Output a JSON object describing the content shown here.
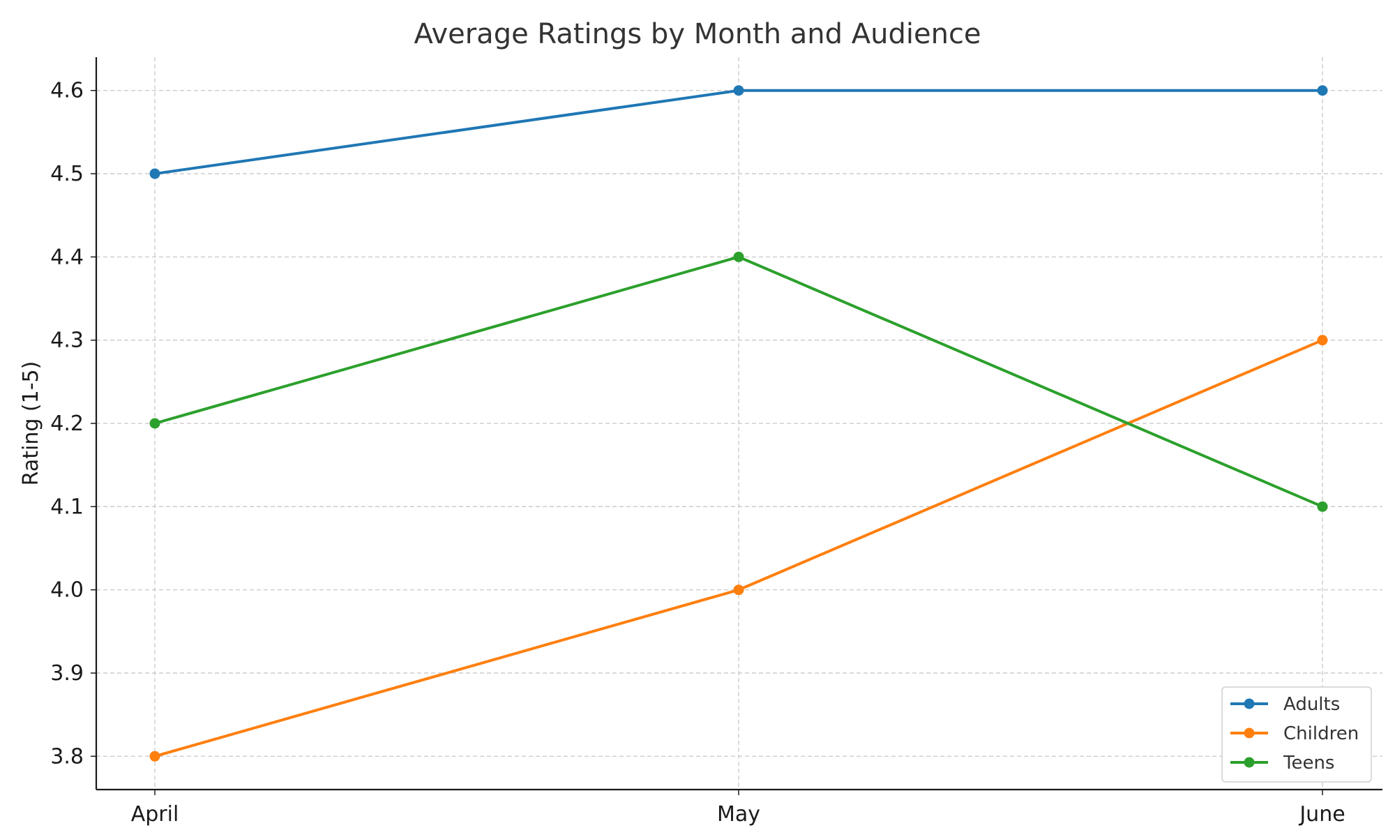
{
  "chart_data": {
    "type": "line",
    "title": "Average Ratings by Month and Audience",
    "xlabel": "",
    "ylabel": "Rating (1-5)",
    "categories": [
      "April",
      "May",
      "June"
    ],
    "ylim": [
      3.76,
      4.64
    ],
    "yticks": [
      3.8,
      3.9,
      4.0,
      4.1,
      4.2,
      4.3,
      4.4,
      4.5,
      4.6
    ],
    "grid": true,
    "legend_position": "lower-right",
    "series": [
      {
        "name": "Adults",
        "values": [
          4.5,
          4.6,
          4.6
        ],
        "color": "#1f77b4"
      },
      {
        "name": "Children",
        "values": [
          3.8,
          4.0,
          4.3
        ],
        "color": "#ff7f0e"
      },
      {
        "name": "Teens",
        "values": [
          4.2,
          4.4,
          4.1
        ],
        "color": "#2ca02c"
      }
    ]
  }
}
